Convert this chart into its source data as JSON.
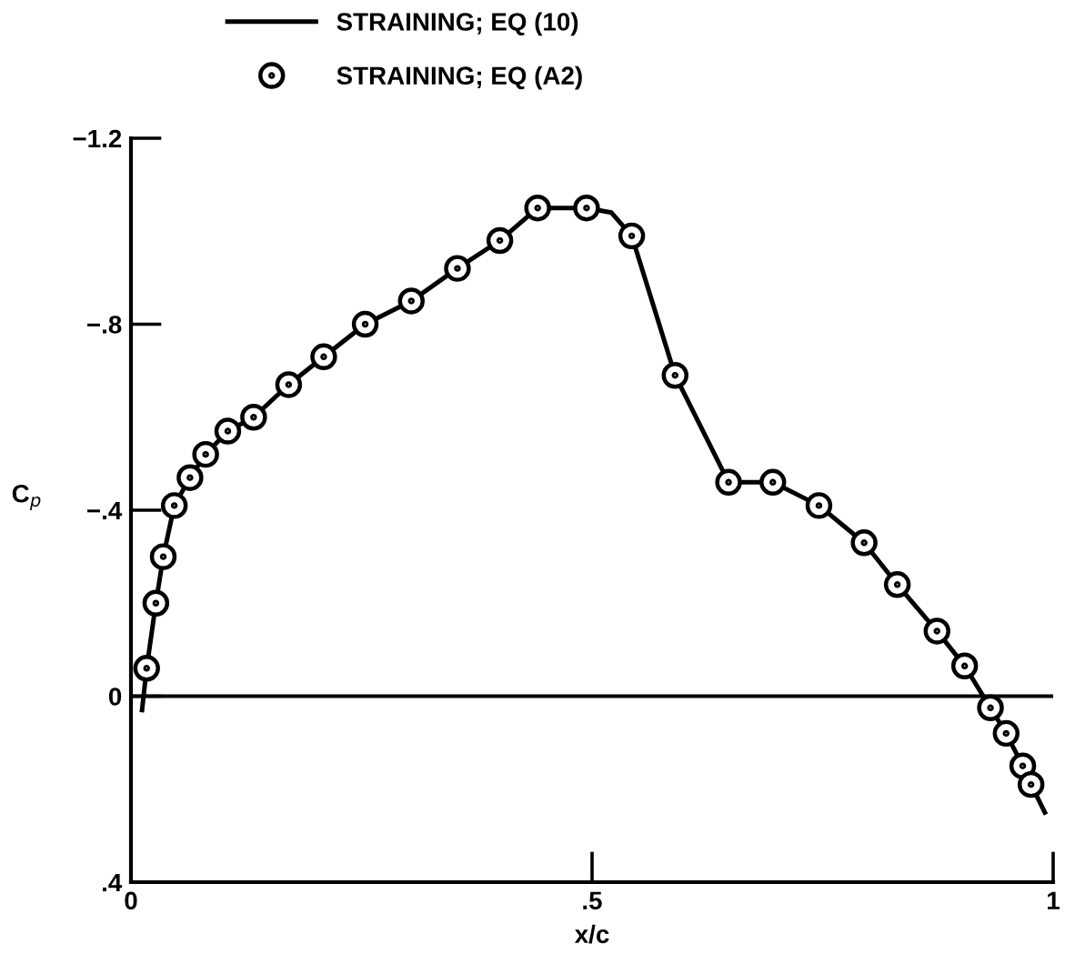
{
  "chart_data": {
    "type": "line",
    "xlabel": "x/c",
    "ylabel": "C$_{p}$",
    "xlim": [
      0,
      1
    ],
    "ylim": [
      0.4,
      -1.2
    ],
    "xticks": [
      0,
      {
        "value": 0.5,
        "label": ".5"
      },
      1
    ],
    "yticks": [
      {
        "value": -1.2,
        "label": "−1.2"
      },
      {
        "value": -0.8,
        "label": "−.8"
      },
      {
        "value": -0.4,
        "label": "−.4"
      },
      0,
      {
        "value": 0.4,
        "label": ".4"
      }
    ],
    "grid": false,
    "legend": "top",
    "ref_lines": [
      {
        "axis": "y",
        "value": 0,
        "color": "#000000",
        "line_style": "solid"
      }
    ],
    "series": [
      {
        "name": "STRAINING; EQ (10)",
        "color": "#000000",
        "marker": "none",
        "line_style": "solid",
        "x": [
          0.012,
          0.017,
          0.027,
          0.035,
          0.047,
          0.064,
          0.081,
          0.105,
          0.133,
          0.171,
          0.209,
          0.254,
          0.304,
          0.354,
          0.4,
          0.441,
          0.494,
          0.521,
          0.543,
          0.59,
          0.648,
          0.696,
          0.746,
          0.795,
          0.831,
          0.874,
          0.904,
          0.932,
          0.949,
          0.967,
          0.976,
          0.991
        ],
        "values": [
          0.03,
          -0.06,
          -0.2,
          -0.3,
          -0.41,
          -0.47,
          -0.52,
          -0.57,
          -0.6,
          -0.67,
          -0.73,
          -0.8,
          -0.85,
          -0.92,
          -0.98,
          -1.05,
          -1.05,
          -1.04,
          -0.99,
          -0.69,
          -0.46,
          -0.46,
          -0.41,
          -0.33,
          -0.24,
          -0.14,
          -0.065,
          0.025,
          0.08,
          0.15,
          0.19,
          0.25
        ]
      },
      {
        "name": "STRAINING; EQ (A2)",
        "type": "scatter",
        "color": "#000000",
        "marker": "circle",
        "x": [
          0.017,
          0.027,
          0.035,
          0.047,
          0.064,
          0.081,
          0.105,
          0.133,
          0.171,
          0.209,
          0.254,
          0.304,
          0.354,
          0.4,
          0.441,
          0.494,
          0.543,
          0.59,
          0.648,
          0.696,
          0.746,
          0.795,
          0.831,
          0.874,
          0.904,
          0.932,
          0.949,
          0.967,
          0.976
        ],
        "values": [
          -0.06,
          -0.2,
          -0.3,
          -0.41,
          -0.47,
          -0.52,
          -0.57,
          -0.6,
          -0.67,
          -0.73,
          -0.8,
          -0.85,
          -0.92,
          -0.98,
          -1.05,
          -1.05,
          -0.99,
          -0.69,
          -0.46,
          -0.46,
          -0.41,
          -0.33,
          -0.24,
          -0.14,
          -0.065,
          0.025,
          0.08,
          0.15,
          0.19
        ]
      }
    ]
  }
}
